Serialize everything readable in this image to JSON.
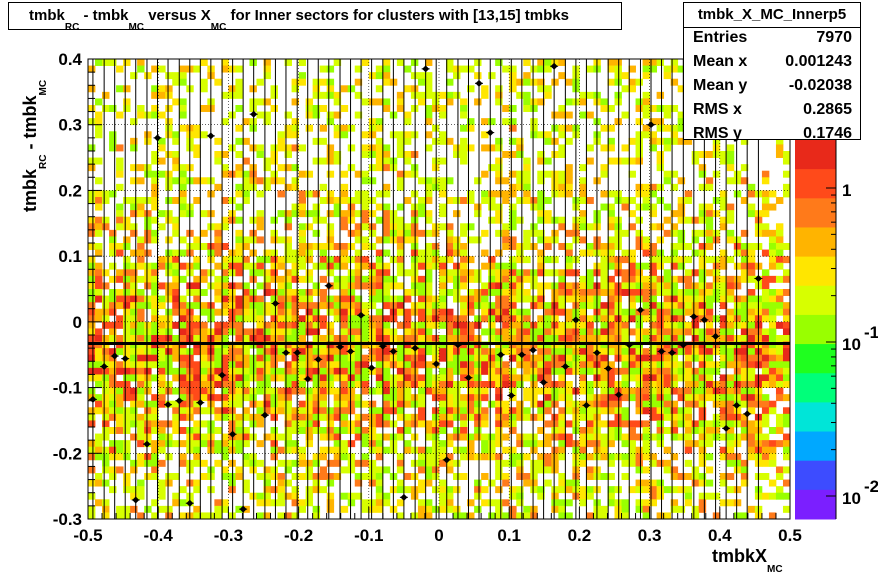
{
  "chart_data": {
    "type": "heatmap",
    "title": {
      "parts": [
        "tmbk",
        "RC",
        " - tmbk",
        "MC",
        " versus X",
        "MC",
        " for Inner sectors for clusters with [13,15] tmbks"
      ]
    },
    "xlabel": {
      "base": "tmbkX",
      "sub": "MC"
    },
    "ylabel": {
      "p1": "tmbk",
      "s1": "RC",
      "p2": " - tmbk",
      "s2": "MC"
    },
    "xlim": [
      -0.5,
      0.5
    ],
    "ylim": [
      -0.3,
      0.4
    ],
    "x_ticks": [
      "-0.5",
      "-0.4",
      "-0.3",
      "-0.2",
      "-0.1",
      "0",
      "0.1",
      "0.2",
      "0.3",
      "0.4",
      "0.5"
    ],
    "y_ticks": [
      "-0.3",
      "-0.2",
      "-0.1",
      "0",
      "0.1",
      "0.2",
      "0.3",
      "0.4"
    ],
    "grid": true,
    "z_scale": "log",
    "z_ticks": [
      {
        "base": "1",
        "exp": "",
        "value": 1
      },
      {
        "base": "10",
        "exp": "-1",
        "value": 0.1
      },
      {
        "base": "10",
        "exp": "-2",
        "value": 0.01
      }
    ],
    "fit_line": {
      "x": [
        -0.5,
        0.5
      ],
      "y": [
        -0.033,
        -0.033
      ]
    },
    "profile_points": [
      {
        "x": -0.493,
        "y": -0.118
      },
      {
        "x": -0.477,
        "y": -0.068
      },
      {
        "x": -0.462,
        "y": -0.052
      },
      {
        "x": -0.447,
        "y": -0.056
      },
      {
        "x": -0.432,
        "y": -0.271
      },
      {
        "x": -0.416,
        "y": -0.186
      },
      {
        "x": -0.401,
        "y": 0.28
      },
      {
        "x": -0.386,
        "y": -0.126
      },
      {
        "x": -0.37,
        "y": -0.12
      },
      {
        "x": -0.355,
        "y": -0.276
      },
      {
        "x": -0.34,
        "y": -0.123
      },
      {
        "x": -0.325,
        "y": 0.283
      },
      {
        "x": -0.309,
        "y": -0.081
      },
      {
        "x": -0.294,
        "y": -0.171
      },
      {
        "x": -0.279,
        "y": -0.285
      },
      {
        "x": -0.264,
        "y": 0.316
      },
      {
        "x": -0.248,
        "y": -0.142
      },
      {
        "x": -0.233,
        "y": 0.028
      },
      {
        "x": -0.218,
        "y": -0.047
      },
      {
        "x": -0.202,
        "y": -0.047
      },
      {
        "x": -0.187,
        "y": -0.087
      },
      {
        "x": -0.172,
        "y": -0.057
      },
      {
        "x": -0.157,
        "y": 0.055
      },
      {
        "x": -0.141,
        "y": -0.038
      },
      {
        "x": -0.126,
        "y": -0.045
      },
      {
        "x": -0.111,
        "y": 0.01
      },
      {
        "x": -0.096,
        "y": -0.07
      },
      {
        "x": -0.08,
        "y": -0.037
      },
      {
        "x": -0.065,
        "y": -0.045
      },
      {
        "x": -0.05,
        "y": -0.267
      },
      {
        "x": -0.034,
        "y": -0.04
      },
      {
        "x": -0.019,
        "y": 0.385
      },
      {
        "x": -0.004,
        "y": -0.064
      },
      {
        "x": 0.011,
        "y": -0.21
      },
      {
        "x": 0.027,
        "y": -0.035
      },
      {
        "x": 0.042,
        "y": -0.085
      },
      {
        "x": 0.057,
        "y": 0.363
      },
      {
        "x": 0.073,
        "y": 0.288
      },
      {
        "x": 0.088,
        "y": -0.05
      },
      {
        "x": 0.103,
        "y": -0.112
      },
      {
        "x": 0.118,
        "y": -0.05
      },
      {
        "x": 0.134,
        "y": -0.043
      },
      {
        "x": 0.149,
        "y": -0.092
      },
      {
        "x": 0.164,
        "y": 0.389
      },
      {
        "x": 0.18,
        "y": -0.068
      },
      {
        "x": 0.195,
        "y": 0.003
      },
      {
        "x": 0.21,
        "y": -0.127
      },
      {
        "x": 0.225,
        "y": -0.047
      },
      {
        "x": 0.241,
        "y": -0.071
      },
      {
        "x": 0.256,
        "y": -0.111
      },
      {
        "x": 0.271,
        "y": -0.035
      },
      {
        "x": 0.287,
        "y": 0.018
      },
      {
        "x": 0.302,
        "y": 0.3
      },
      {
        "x": 0.317,
        "y": -0.045
      },
      {
        "x": 0.332,
        "y": -0.047
      },
      {
        "x": 0.348,
        "y": -0.035
      },
      {
        "x": 0.363,
        "y": 0.008
      },
      {
        "x": 0.378,
        "y": 0.003
      },
      {
        "x": 0.394,
        "y": -0.022
      },
      {
        "x": 0.409,
        "y": -0.162
      },
      {
        "x": 0.424,
        "y": -0.127
      },
      {
        "x": 0.439,
        "y": -0.14
      },
      {
        "x": 0.455,
        "y": 0.066
      }
    ],
    "colors": {
      "palette": [
        "#7b1fff",
        "#3d4cff",
        "#00a8ff",
        "#00e5d8",
        "#00ff7a",
        "#1fff1f",
        "#99ff00",
        "#d7ff00",
        "#ffe600",
        "#ffb400",
        "#ff7a1a",
        "#ff4a1a",
        "#e8291a"
      ],
      "frame": "#000000"
    }
  },
  "stats": {
    "name": "tmbk_X_MC_Innerp5",
    "rows": [
      {
        "label": "Entries",
        "value": "7970"
      },
      {
        "label": "Mean x",
        "value": "0.001243"
      },
      {
        "label": "Mean y",
        "value": "-0.02038"
      },
      {
        "label": "RMS x",
        "value": "0.2865"
      },
      {
        "label": "RMS y",
        "value": "0.1746"
      }
    ]
  }
}
